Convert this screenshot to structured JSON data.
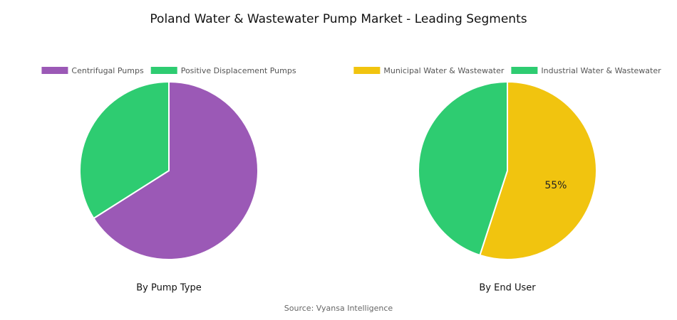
{
  "title": "Poland Water & Wastewater Pump Market - Leading Segments",
  "source": "Source: Vyansa Intelligence",
  "chart_data": [
    {
      "type": "pie",
      "title": "By Pump Type",
      "categories": [
        "Centrifugal Pumps",
        "Positive Displacement Pumps"
      ],
      "values": [
        66,
        34
      ],
      "colors": [
        "#9b59b6",
        "#2ecc71"
      ]
    },
    {
      "type": "pie",
      "title": "By End User",
      "categories": [
        "Municipal Water & Wastewater",
        "Industrial Water & Wastewater"
      ],
      "values": [
        55,
        45
      ],
      "value_labels": [
        "55%",
        null
      ],
      "colors": [
        "#f1c40f",
        "#2ecc71"
      ]
    }
  ]
}
